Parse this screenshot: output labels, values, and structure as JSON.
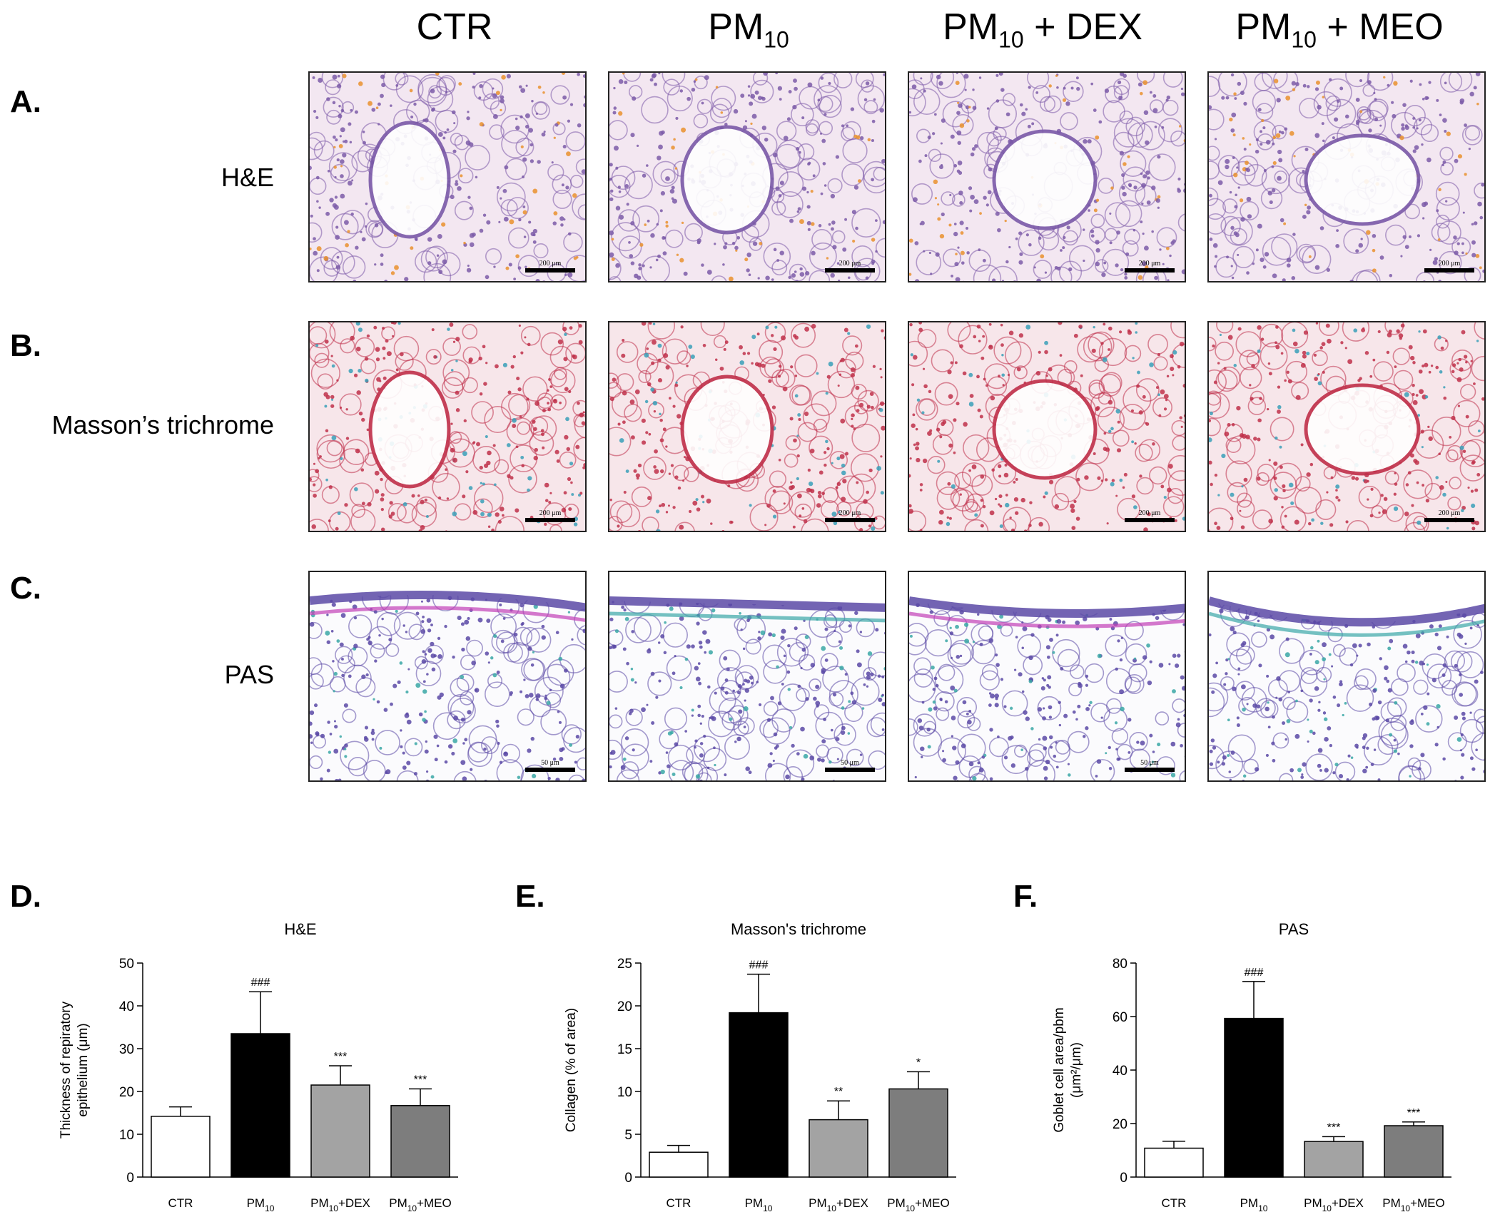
{
  "column_headers": [
    {
      "main": "CTR",
      "sub": "",
      "suffix": ""
    },
    {
      "main": "PM",
      "sub": "10",
      "suffix": ""
    },
    {
      "main": "PM",
      "sub": "10",
      "suffix": " + DEX"
    },
    {
      "main": "PM",
      "sub": "10",
      "suffix": " + MEO"
    }
  ],
  "rows": [
    {
      "letter": "A.",
      "label": "H&E",
      "scale": [
        "200 μm",
        "200 μm",
        "200 μm",
        "200 μm"
      ]
    },
    {
      "letter": "B.",
      "label": "Masson’s trichrome",
      "scale": [
        "200 μm",
        "200 μm",
        "200 μm",
        "200 μm"
      ]
    },
    {
      "letter": "C.",
      "label": "PAS",
      "scale": [
        "50 μm",
        "50 μm",
        "50 μm",
        ""
      ]
    }
  ],
  "colors": {
    "he_bg": "#f3e7f1",
    "he_cell": "#7b5aa8",
    "he_rbc": "#e9902e",
    "mt_bg": "#f7e6ea",
    "mt_cell": "#c0304a",
    "mt_collagen": "#3a9fb8",
    "pas_bg": "#fbfbfd",
    "pas_cell": "#5b49a6",
    "pas_magenta": "#c23fb6",
    "pas_teal": "#3aa7a6",
    "bar_ctr": "#ffffff",
    "bar_pm10": "#000000",
    "bar_dex": "#a3a3a3",
    "bar_meo": "#7d7d7d"
  },
  "chart_data": [
    {
      "type": "bar",
      "panel": "D.",
      "title": "H&E",
      "ylabel": [
        "Thickness of repiratory",
        "epithelium (μm)"
      ],
      "categories": [
        {
          "main": "CTR",
          "sub": "",
          "suffix": ""
        },
        {
          "main": "PM",
          "sub": "10",
          "suffix": ""
        },
        {
          "main": "PM",
          "sub": "10",
          "suffix": "+DEX"
        },
        {
          "main": "PM",
          "sub": "10",
          "suffix": "+MEO"
        }
      ],
      "values": [
        14.2,
        33.5,
        21.5,
        16.7
      ],
      "errors": [
        2.2,
        9.8,
        4.5,
        3.9
      ],
      "annotations": [
        "",
        "###",
        "***",
        "***"
      ],
      "ylim": [
        0,
        50
      ],
      "yticks": [
        0,
        10,
        20,
        30,
        40,
        50
      ]
    },
    {
      "type": "bar",
      "panel": "E.",
      "title": "Masson's trichrome",
      "ylabel": [
        "Collagen (% of area)"
      ],
      "categories": [
        {
          "main": "CTR",
          "sub": "",
          "suffix": ""
        },
        {
          "main": "PM",
          "sub": "10",
          "suffix": ""
        },
        {
          "main": "PM",
          "sub": "10",
          "suffix": "+DEX"
        },
        {
          "main": "PM",
          "sub": "10",
          "suffix": "+MEO"
        }
      ],
      "values": [
        2.9,
        19.2,
        6.7,
        10.3
      ],
      "errors": [
        0.8,
        4.5,
        2.2,
        2.0
      ],
      "annotations": [
        "",
        "###",
        "**",
        "*"
      ],
      "ylim": [
        0,
        25
      ],
      "yticks": [
        0,
        5,
        10,
        15,
        20,
        25
      ]
    },
    {
      "type": "bar",
      "panel": "F.",
      "title": "PAS",
      "ylabel": [
        "Goblet cell area/pbm",
        "(μm²/μm)"
      ],
      "categories": [
        {
          "main": "CTR",
          "sub": "",
          "suffix": ""
        },
        {
          "main": "PM",
          "sub": "10",
          "suffix": ""
        },
        {
          "main": "PM",
          "sub": "10",
          "suffix": "+DEX"
        },
        {
          "main": "PM",
          "sub": "10",
          "suffix": "+MEO"
        }
      ],
      "values": [
        10.8,
        59.3,
        13.3,
        19.2
      ],
      "errors": [
        2.6,
        13.8,
        1.8,
        1.4
      ],
      "annotations": [
        "",
        "###",
        "***",
        "***"
      ],
      "ylim": [
        0,
        80
      ],
      "yticks": [
        0,
        20,
        40,
        60,
        80
      ]
    }
  ]
}
